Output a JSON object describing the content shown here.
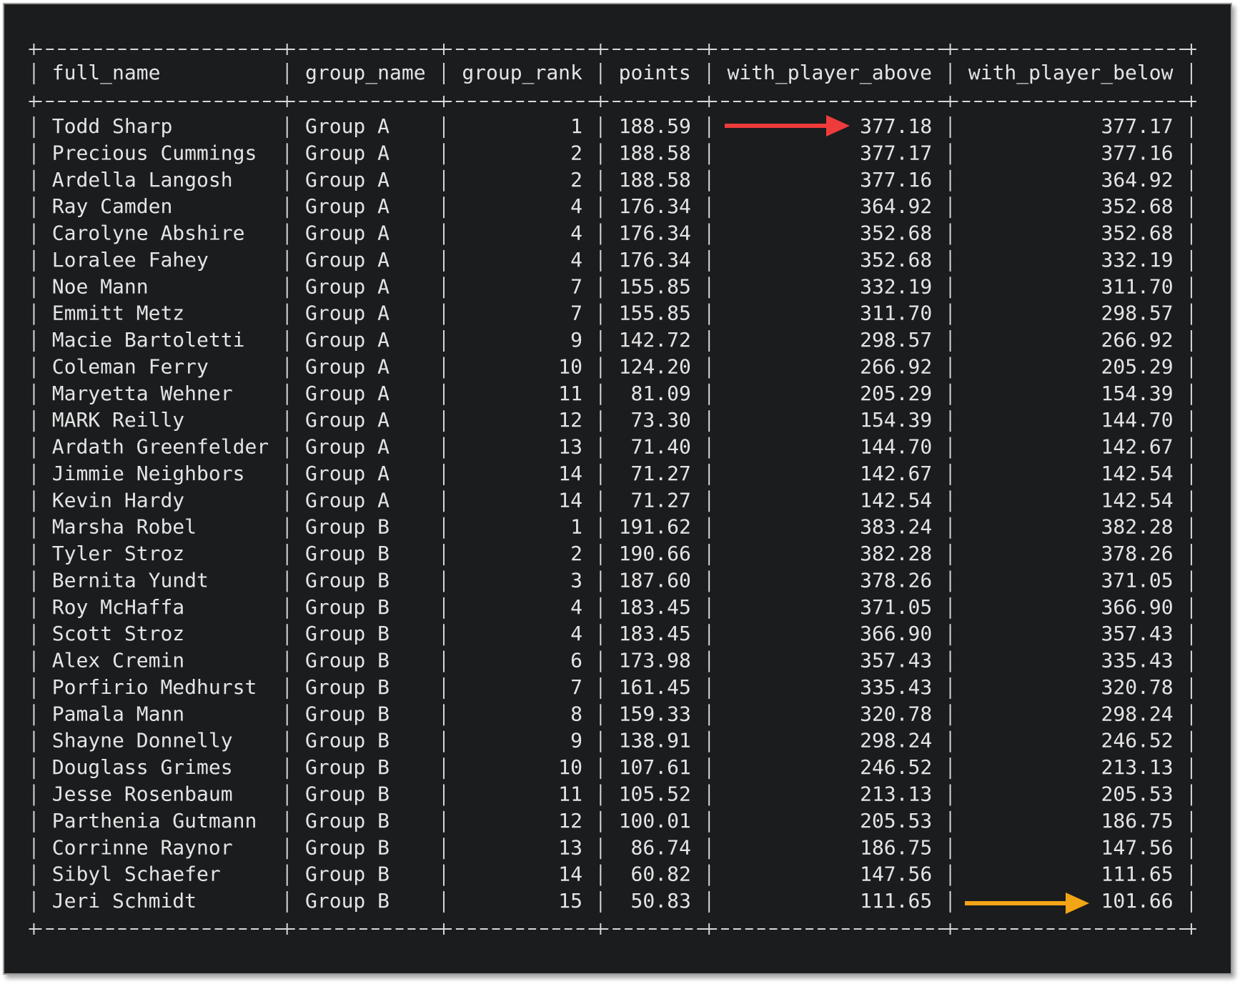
{
  "table": {
    "columns": [
      "full_name",
      "group_name",
      "group_rank",
      "points",
      "with_player_above",
      "with_player_below"
    ],
    "rows": [
      [
        "Todd Sharp",
        "Group A",
        "1",
        "188.59",
        "377.18",
        "377.17"
      ],
      [
        "Precious Cummings",
        "Group A",
        "2",
        "188.58",
        "377.17",
        "377.16"
      ],
      [
        "Ardella Langosh",
        "Group A",
        "2",
        "188.58",
        "377.16",
        "364.92"
      ],
      [
        "Ray Camden",
        "Group A",
        "4",
        "176.34",
        "364.92",
        "352.68"
      ],
      [
        "Carolyne Abshire",
        "Group A",
        "4",
        "176.34",
        "352.68",
        "352.68"
      ],
      [
        "Loralee Fahey",
        "Group A",
        "4",
        "176.34",
        "352.68",
        "332.19"
      ],
      [
        "Noe Mann",
        "Group A",
        "7",
        "155.85",
        "332.19",
        "311.70"
      ],
      [
        "Emmitt Metz",
        "Group A",
        "7",
        "155.85",
        "311.70",
        "298.57"
      ],
      [
        "Macie Bartoletti",
        "Group A",
        "9",
        "142.72",
        "298.57",
        "266.92"
      ],
      [
        "Coleman Ferry",
        "Group A",
        "10",
        "124.20",
        "266.92",
        "205.29"
      ],
      [
        "Maryetta Wehner",
        "Group A",
        "11",
        "81.09",
        "205.29",
        "154.39"
      ],
      [
        "MARK Reilly",
        "Group A",
        "12",
        "73.30",
        "154.39",
        "144.70"
      ],
      [
        "Ardath Greenfelder",
        "Group A",
        "13",
        "71.40",
        "144.70",
        "142.67"
      ],
      [
        "Jimmie Neighbors",
        "Group A",
        "14",
        "71.27",
        "142.67",
        "142.54"
      ],
      [
        "Kevin Hardy",
        "Group A",
        "14",
        "71.27",
        "142.54",
        "142.54"
      ],
      [
        "Marsha Robel",
        "Group B",
        "1",
        "191.62",
        "383.24",
        "382.28"
      ],
      [
        "Tyler Stroz",
        "Group B",
        "2",
        "190.66",
        "382.28",
        "378.26"
      ],
      [
        "Bernita Yundt",
        "Group B",
        "3",
        "187.60",
        "378.26",
        "371.05"
      ],
      [
        "Roy McHaffa",
        "Group B",
        "4",
        "183.45",
        "371.05",
        "366.90"
      ],
      [
        "Scott Stroz",
        "Group B",
        "4",
        "183.45",
        "366.90",
        "357.43"
      ],
      [
        "Alex Cremin",
        "Group B",
        "6",
        "173.98",
        "357.43",
        "335.43"
      ],
      [
        "Porfirio Medhurst",
        "Group B",
        "7",
        "161.45",
        "335.43",
        "320.78"
      ],
      [
        "Pamala Mann",
        "Group B",
        "8",
        "159.33",
        "320.78",
        "298.24"
      ],
      [
        "Shayne Donnelly",
        "Group B",
        "9",
        "138.91",
        "298.24",
        "246.52"
      ],
      [
        "Douglass Grimes",
        "Group B",
        "10",
        "107.61",
        "246.52",
        "213.13"
      ],
      [
        "Jesse Rosenbaum",
        "Group B",
        "11",
        "105.52",
        "213.13",
        "205.53"
      ],
      [
        "Parthenia Gutmann",
        "Group B",
        "12",
        "100.01",
        "205.53",
        "186.75"
      ],
      [
        "Corrinne Raynor",
        "Group B",
        "13",
        "86.74",
        "186.75",
        "147.56"
      ],
      [
        "Sibyl Schaefer",
        "Group B",
        "14",
        "60.82",
        "147.56",
        "111.65"
      ],
      [
        "Jeri Schmidt",
        "Group B",
        "15",
        "50.83",
        "111.65",
        "101.66"
      ]
    ]
  }
}
